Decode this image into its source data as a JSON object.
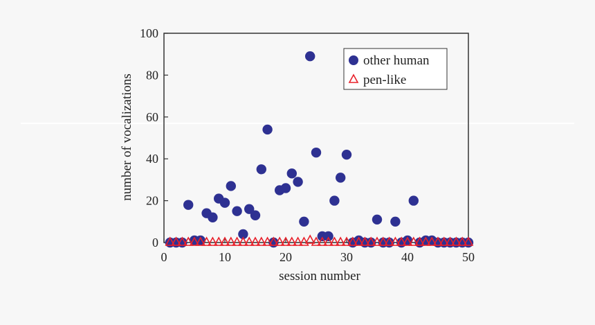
{
  "chart_data": {
    "type": "scatter",
    "xlabel": "session number",
    "ylabel": "number of vocalizations",
    "xlim": [
      0,
      50
    ],
    "ylim": [
      0,
      100
    ],
    "xticks": [
      0,
      10,
      20,
      30,
      40,
      50
    ],
    "yticks": [
      0,
      20,
      40,
      60,
      80,
      100
    ],
    "grid": false,
    "legend_position": "top-right",
    "series": [
      {
        "name": "other human",
        "marker": "filled-circle",
        "color": "#2e3192",
        "points": [
          [
            1,
            0
          ],
          [
            2,
            0
          ],
          [
            3,
            0
          ],
          [
            4,
            18
          ],
          [
            5,
            1
          ],
          [
            6,
            1
          ],
          [
            7,
            14
          ],
          [
            8,
            12
          ],
          [
            9,
            21
          ],
          [
            10,
            19
          ],
          [
            11,
            27
          ],
          [
            12,
            15
          ],
          [
            13,
            4
          ],
          [
            14,
            16
          ],
          [
            15,
            13
          ],
          [
            16,
            35
          ],
          [
            17,
            54
          ],
          [
            18,
            0
          ],
          [
            19,
            25
          ],
          [
            20,
            26
          ],
          [
            21,
            33
          ],
          [
            22,
            29
          ],
          [
            23,
            10
          ],
          [
            24,
            89
          ],
          [
            25,
            43
          ],
          [
            26,
            3
          ],
          [
            27,
            3
          ],
          [
            28,
            20
          ],
          [
            29,
            31
          ],
          [
            30,
            42
          ],
          [
            31,
            0
          ],
          [
            32,
            1
          ],
          [
            33,
            0
          ],
          [
            34,
            0
          ],
          [
            35,
            11
          ],
          [
            36,
            0
          ],
          [
            37,
            0
          ],
          [
            38,
            10
          ],
          [
            39,
            0
          ],
          [
            40,
            1
          ],
          [
            41,
            20
          ],
          [
            42,
            0
          ],
          [
            43,
            1
          ],
          [
            44,
            1
          ],
          [
            45,
            0
          ],
          [
            46,
            0
          ],
          [
            47,
            0
          ],
          [
            48,
            0
          ],
          [
            49,
            0
          ],
          [
            50,
            0
          ]
        ]
      },
      {
        "name": "pen-like",
        "marker": "open-triangle",
        "color": "#e8202a",
        "points": [
          [
            1,
            0
          ],
          [
            2,
            0
          ],
          [
            3,
            0
          ],
          [
            4,
            0
          ],
          [
            5,
            0
          ],
          [
            6,
            0
          ],
          [
            7,
            0
          ],
          [
            8,
            0
          ],
          [
            9,
            0
          ],
          [
            10,
            0
          ],
          [
            11,
            0
          ],
          [
            12,
            0
          ],
          [
            13,
            0
          ],
          [
            14,
            0
          ],
          [
            15,
            0
          ],
          [
            16,
            0
          ],
          [
            17,
            0
          ],
          [
            18,
            0
          ],
          [
            19,
            0
          ],
          [
            20,
            0
          ],
          [
            21,
            0
          ],
          [
            22,
            0
          ],
          [
            23,
            0
          ],
          [
            24,
            1
          ],
          [
            25,
            0
          ],
          [
            26,
            0
          ],
          [
            27,
            0
          ],
          [
            28,
            0
          ],
          [
            29,
            0
          ],
          [
            30,
            0
          ],
          [
            31,
            0
          ],
          [
            32,
            0
          ],
          [
            33,
            0
          ],
          [
            34,
            0
          ],
          [
            35,
            0
          ],
          [
            36,
            0
          ],
          [
            37,
            0
          ],
          [
            38,
            0
          ],
          [
            39,
            0
          ],
          [
            40,
            0
          ],
          [
            41,
            0
          ],
          [
            42,
            0
          ],
          [
            43,
            0
          ],
          [
            44,
            0
          ],
          [
            45,
            0
          ],
          [
            46,
            0
          ],
          [
            47,
            0
          ],
          [
            48,
            0
          ],
          [
            49,
            0
          ],
          [
            50,
            0
          ]
        ]
      }
    ]
  }
}
